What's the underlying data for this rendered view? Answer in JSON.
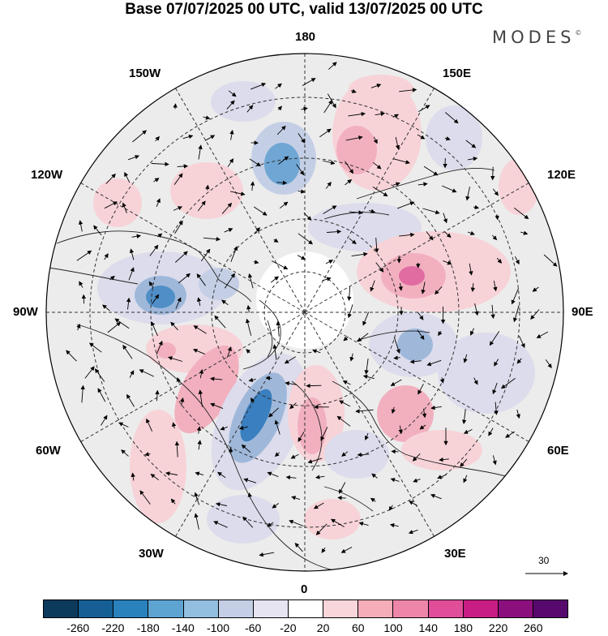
{
  "title": "Base 07/07/2025 00 UTC, valid 13/07/2025 00 UTC",
  "brand": {
    "name": "MODES",
    "mark": "©"
  },
  "longitude_labels": [
    {
      "key": "top",
      "text": "180"
    },
    {
      "key": "bottom",
      "text": "0"
    },
    {
      "key": "left",
      "text": "90W"
    },
    {
      "key": "right",
      "text": "90E"
    },
    {
      "key": "nw1",
      "text": "150W"
    },
    {
      "key": "nw2",
      "text": "120W"
    },
    {
      "key": "ne1",
      "text": "150E"
    },
    {
      "key": "ne2",
      "text": "120E"
    },
    {
      "key": "sw1",
      "text": "60W"
    },
    {
      "key": "sw2",
      "text": "30W"
    },
    {
      "key": "se1",
      "text": "60E"
    },
    {
      "key": "se2",
      "text": "30E"
    }
  ],
  "reference_vector": {
    "value": "30"
  },
  "colorbar": {
    "colors": [
      "#0b3a5c",
      "#155f94",
      "#2a82bd",
      "#5ea4d2",
      "#92bee0",
      "#c4cfe6",
      "#e6e4f1",
      "#ffffff",
      "#f9d6d9",
      "#f4adb9",
      "#ee86a9",
      "#e04d99",
      "#c81e84",
      "#8c0f7e",
      "#57096e"
    ],
    "ticks": [
      "-260",
      "-220",
      "-180",
      "-140",
      "-100",
      "-60",
      "-20",
      "20",
      "60",
      "100",
      "140",
      "180",
      "220",
      "260"
    ]
  },
  "anomaly_colors": {
    "negative_strong": "#3a7fbf",
    "negative_medium": "#9fb8da",
    "negative_weak": "#dcdcec",
    "positive_weak": "#f7d3d8",
    "positive_medium": "#f2b0bf",
    "positive_strong": "#e06ca2",
    "neutral_land": "#e9e9e9"
  }
}
